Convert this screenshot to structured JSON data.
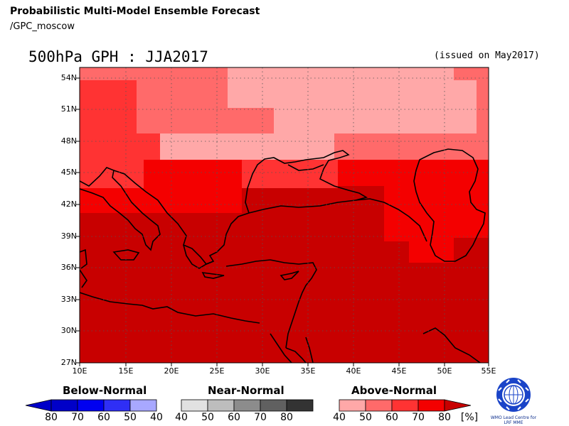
{
  "header": {
    "title": "Probabilistic Multi-Model Ensemble Forecast",
    "subtitle": "/GPC_moscow",
    "map_title": "500hPa GPH : JJA2017",
    "issued": "(issued on May2017)"
  },
  "map": {
    "lat_labels": [
      "54N",
      "51N",
      "48N",
      "45N",
      "42N",
      "39N",
      "36N",
      "33N",
      "30N",
      "27N"
    ],
    "lon_labels": [
      "10E",
      "15E",
      "20E",
      "25E",
      "30E",
      "35E",
      "40E",
      "45E",
      "50E",
      "55E"
    ],
    "lon_range": [
      10,
      55
    ],
    "lat_range": [
      27,
      55
    ],
    "colors": {
      "a40": "#ffa8a8",
      "a50": "#ff6a6a",
      "a60": "#ff3333",
      "a70": "#f40000",
      "a80": "#c80000"
    }
  },
  "legend": {
    "below": {
      "title": "Below-Normal",
      "ticks": [
        "80",
        "70",
        "60",
        "50",
        "40"
      ],
      "colors": [
        "#0000c8",
        "#0000f0",
        "#2f2ff5",
        "#6666f5",
        "#a8a8ff"
      ]
    },
    "near": {
      "title": "Near-Normal",
      "ticks": [
        "40",
        "50",
        "60",
        "70",
        "80"
      ],
      "colors": [
        "#e1e1e1",
        "#bdbdbd",
        "#8c8c8c",
        "#606060",
        "#333333"
      ]
    },
    "above": {
      "title": "Above-Normal",
      "ticks": [
        "40",
        "50",
        "60",
        "70",
        "80"
      ],
      "colors": [
        "#ffa8a8",
        "#ff6a6a",
        "#ff3333",
        "#f40000",
        "#c80000"
      ],
      "unit": "[%]"
    }
  },
  "logo": {
    "text": "WMO Lead Centre for LRF MME"
  }
}
